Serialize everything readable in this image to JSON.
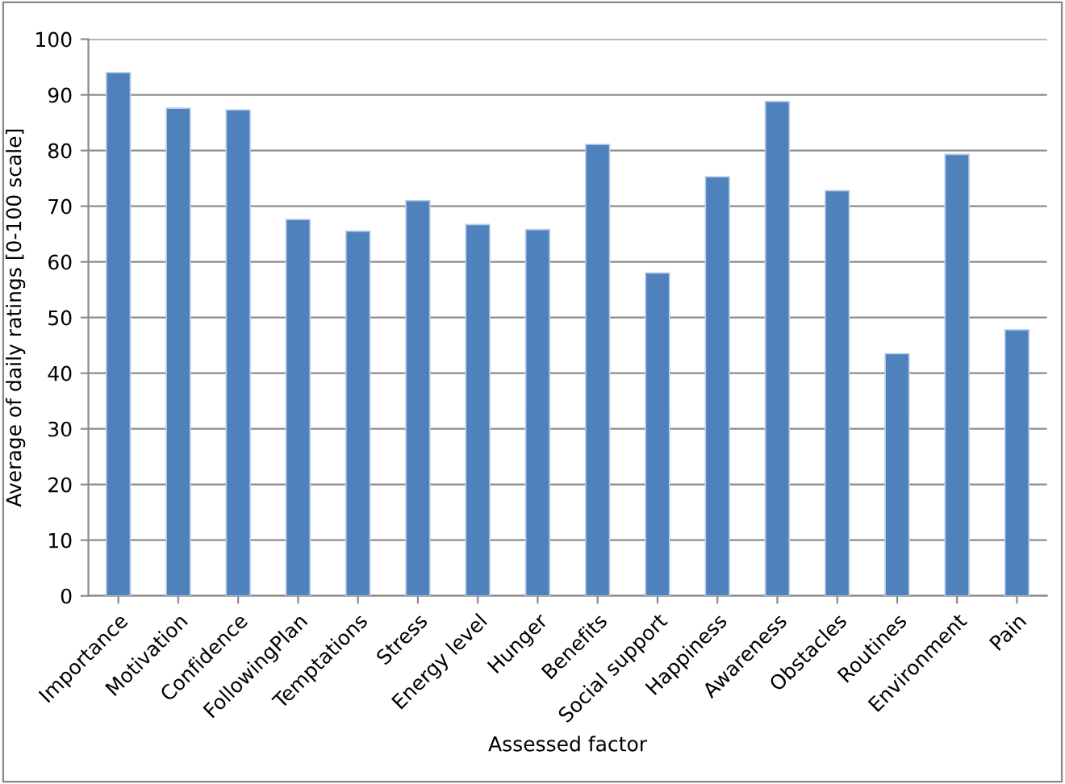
{
  "chart_data": {
    "type": "bar",
    "xlabel": "Assessed factor",
    "ylabel": "Average of daily ratings [0-100 scale]",
    "categories": [
      "Importance",
      "Motivation",
      "Confidence",
      "FollowingPlan",
      "Temptations",
      "Stress",
      "Energy level",
      "Hunger",
      "Benefits",
      "Social support",
      "Happiness",
      "Awareness",
      "Obstacles",
      "Routines",
      "Environment",
      "Pain"
    ],
    "values": [
      94,
      87.6,
      87.3,
      67.6,
      65.5,
      71,
      66.7,
      65.8,
      81.1,
      58,
      75.3,
      88.8,
      72.8,
      43.5,
      79.3,
      47.8
    ],
    "color": "#4f81bd",
    "ylim": [
      0,
      100
    ],
    "yticks": [
      0,
      10,
      20,
      30,
      40,
      50,
      60,
      70,
      80,
      90,
      100
    ],
    "grid": "y",
    "legend": false
  }
}
